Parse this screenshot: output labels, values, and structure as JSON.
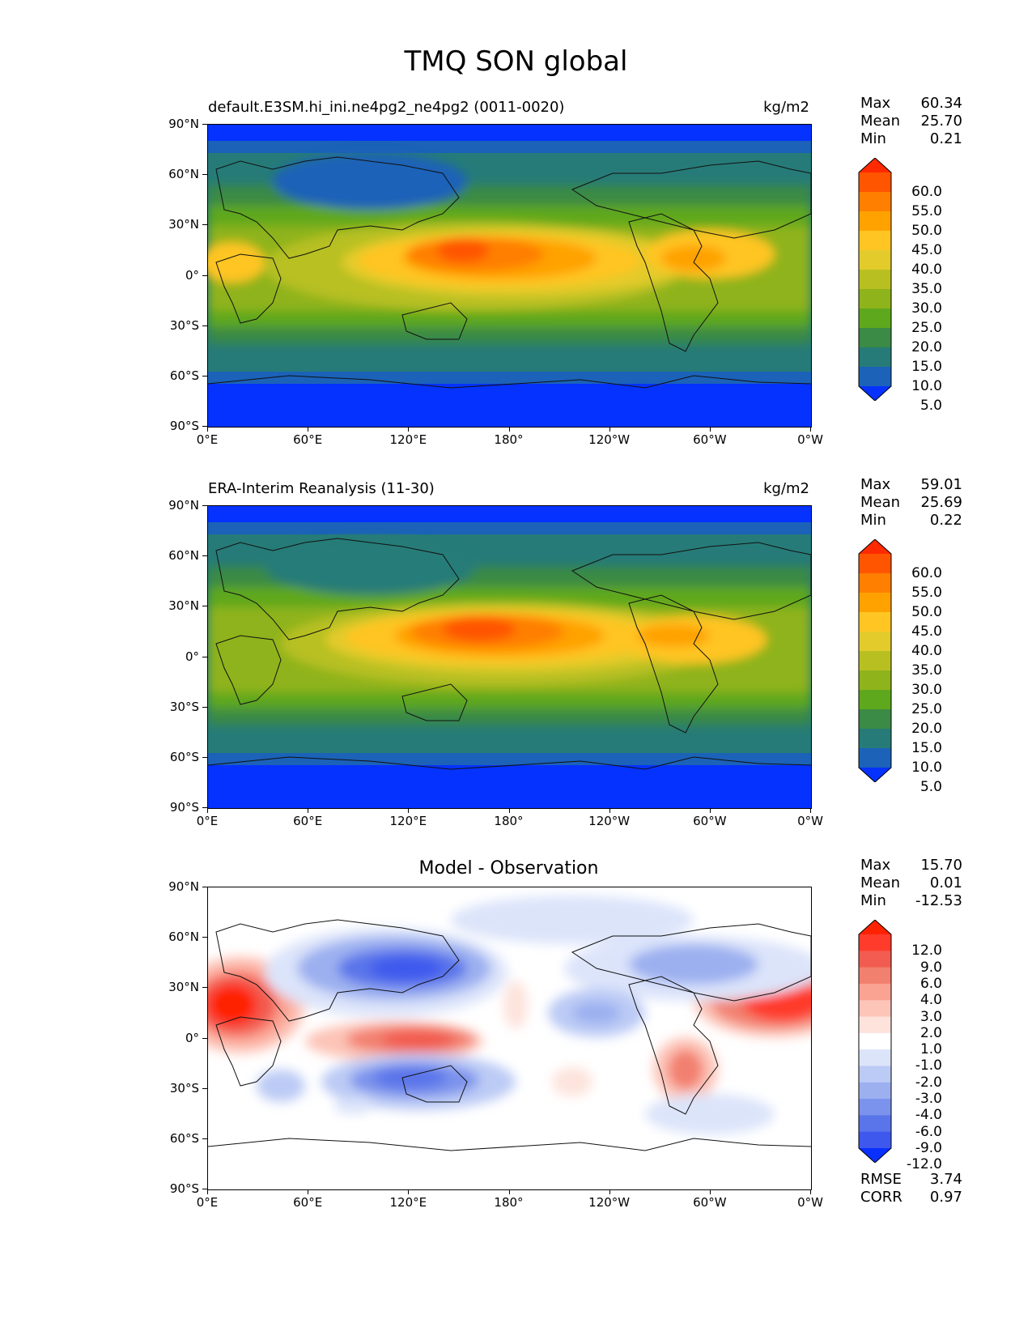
{
  "title": "TMQ SON global",
  "panels": [
    {
      "id": "model",
      "title": "default.E3SM.hi_ini.ne4pg2_ne4pg2 (0011-0020)",
      "units": "kg/m2",
      "stats": [
        {
          "label": "Max",
          "value": "60.34"
        },
        {
          "label": "Mean",
          "value": "25.70"
        },
        {
          "label": "Min",
          "value": "0.21"
        }
      ],
      "colorbar_labels": [
        "60.0",
        "55.0",
        "50.0",
        "45.0",
        "40.0",
        "35.0",
        "30.0",
        "25.0",
        "20.0",
        "15.0",
        "10.0",
        "5.0"
      ],
      "colorbar_colors": [
        "#ff2a00",
        "#ff5500",
        "#ff7f00",
        "#ffa200",
        "#ffc523",
        "#e3cb2c",
        "#b8c021",
        "#8fb31b",
        "#5ea81d",
        "#3b8a45",
        "#267b78",
        "#1b62b8",
        "#0532ff"
      ]
    },
    {
      "id": "obs",
      "title": "ERA-Interim Reanalysis (11-30)",
      "units": "kg/m2",
      "stats": [
        {
          "label": "Max",
          "value": "59.01"
        },
        {
          "label": "Mean",
          "value": "25.69"
        },
        {
          "label": "Min",
          "value": "0.22"
        }
      ],
      "colorbar_labels": [
        "60.0",
        "55.0",
        "50.0",
        "45.0",
        "40.0",
        "35.0",
        "30.0",
        "25.0",
        "20.0",
        "15.0",
        "10.0",
        "5.0"
      ],
      "colorbar_colors": [
        "#ff2a00",
        "#ff5500",
        "#ff7f00",
        "#ffa200",
        "#ffc523",
        "#e3cb2c",
        "#b8c021",
        "#8fb31b",
        "#5ea81d",
        "#3b8a45",
        "#267b78",
        "#1b62b8",
        "#0532ff"
      ]
    },
    {
      "id": "diff",
      "title": "Model - Observation",
      "units": "",
      "stats": [
        {
          "label": "Max",
          "value": "15.70"
        },
        {
          "label": "Mean",
          "value": "0.01"
        },
        {
          "label": "Min",
          "value": "-12.53"
        }
      ],
      "extra_stats": [
        {
          "label": "RMSE",
          "value": "3.74"
        },
        {
          "label": "CORR",
          "value": "0.97"
        }
      ],
      "colorbar_labels": [
        "12.0",
        "9.0",
        "6.0",
        "4.0",
        "3.0",
        "2.0",
        "1.0",
        "-1.0",
        "-2.0",
        "-3.0",
        "-4.0",
        "-6.0",
        "-9.0",
        "-12.0"
      ],
      "colorbar_colors": [
        "#ff2200",
        "#ff3b2b",
        "#f25c50",
        "#f2806f",
        "#fba393",
        "#fdc4b8",
        "#fde3dc",
        "#ffffff",
        "#dce4fa",
        "#bccbf5",
        "#9cb0f0",
        "#7b93ec",
        "#5a75ea",
        "#3e58ee",
        "#0a30ff"
      ]
    }
  ],
  "x_ticks": [
    "0°E",
    "60°E",
    "120°E",
    "180°",
    "120°W",
    "60°W",
    "0°W"
  ],
  "y_ticks": [
    "90°N",
    "60°N",
    "30°N",
    "0°",
    "30°S",
    "60°S",
    "90°S"
  ]
}
